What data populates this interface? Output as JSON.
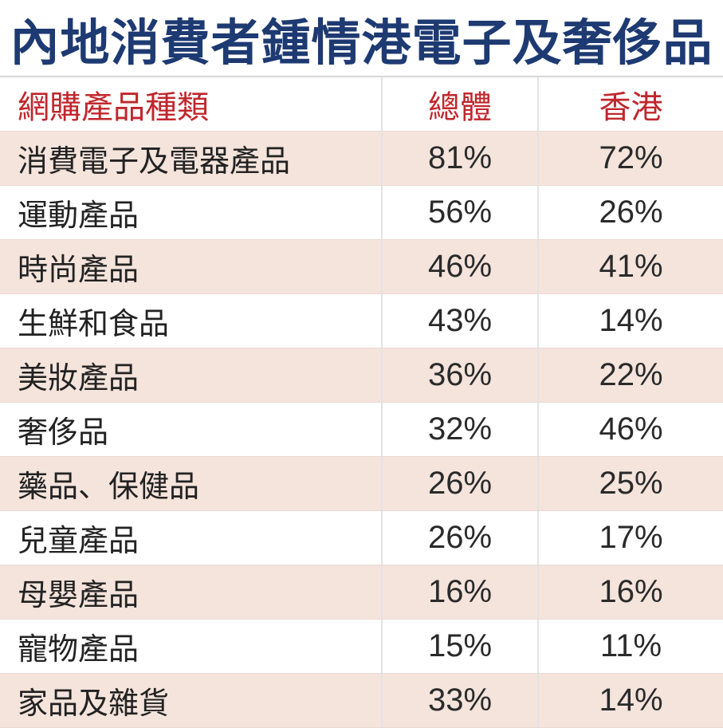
{
  "title": "內地消費者鍾情港電子及奢侈品",
  "colors": {
    "title": "#1e3a72",
    "header_text": "#c0272d",
    "row_shade": "#f4e4dc"
  },
  "chart_data": {
    "type": "table",
    "title": "內地消費者鍾情港電子及奢侈品",
    "columns": [
      "網購產品種類",
      "總體",
      "香港"
    ],
    "rows": [
      {
        "category": "消費電子及電器產品",
        "total": "81%",
        "hk": "72%"
      },
      {
        "category": "運動產品",
        "total": "56%",
        "hk": "26%"
      },
      {
        "category": "時尚產品",
        "total": "46%",
        "hk": "41%"
      },
      {
        "category": "生鮮和食品",
        "total": "43%",
        "hk": "14%"
      },
      {
        "category": "美妝產品",
        "total": "36%",
        "hk": "22%"
      },
      {
        "category": "奢侈品",
        "total": "32%",
        "hk": "46%"
      },
      {
        "category": "藥品、保健品",
        "total": "26%",
        "hk": "25%"
      },
      {
        "category": "兒童產品",
        "total": "26%",
        "hk": "17%"
      },
      {
        "category": "母嬰產品",
        "total": "16%",
        "hk": "16%"
      },
      {
        "category": "寵物產品",
        "total": "15%",
        "hk": "11%"
      },
      {
        "category": "家品及雜貨",
        "total": "33%",
        "hk": "14%"
      }
    ]
  }
}
